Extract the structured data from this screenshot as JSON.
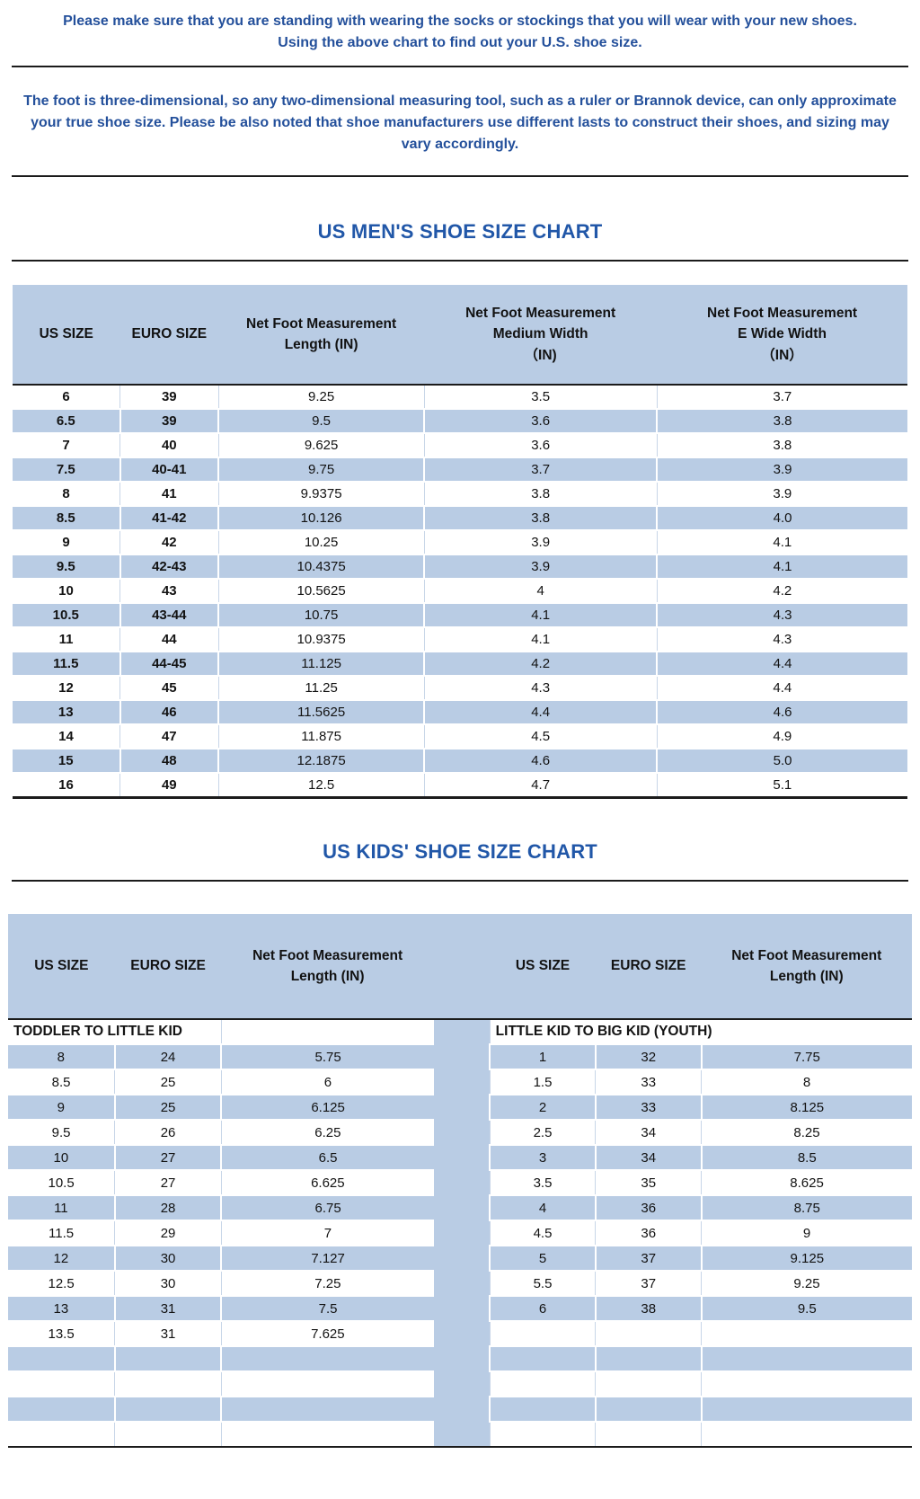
{
  "intro": {
    "p1_line1": "Please make sure that you are standing with wearing the socks or stockings that you will wear with your new shoes.",
    "p1_line2": "Using the above chart to find out your U.S. shoe size.",
    "p2": "The foot is three-dimensional, so any two-dimensional measuring tool, such as a ruler or Brannok device, can only approximate your true shoe size. Please be also noted that shoe manufacturers use different lasts to construct their shoes, and sizing may vary accordingly."
  },
  "colors": {
    "row_blue": "#b9cce4",
    "heading_blue": "#2157a8",
    "paragraph_blue": "#24509b",
    "line_black": "#1b1b1b"
  },
  "mens_chart": {
    "title": "US MEN'S SHOE SIZE CHART",
    "columns": [
      [
        "US SIZE"
      ],
      [
        "EURO SIZE"
      ],
      [
        "Net Foot Measurement",
        "Length (IN)"
      ],
      [
        "Net Foot Measurement",
        "Medium Width",
        "（IN)"
      ],
      [
        "Net Foot Measurement",
        "E Wide Width",
        "（IN）"
      ]
    ],
    "rows": [
      [
        "6",
        "39",
        "9.25",
        "3.5",
        "3.7"
      ],
      [
        "6.5",
        "39",
        "9.5",
        "3.6",
        "3.8"
      ],
      [
        "7",
        "40",
        "9.625",
        "3.6",
        "3.8"
      ],
      [
        "7.5",
        "40-41",
        "9.75",
        "3.7",
        "3.9"
      ],
      [
        "8",
        "41",
        "9.9375",
        "3.8",
        "3.9"
      ],
      [
        "8.5",
        "41-42",
        "10.126",
        "3.8",
        "4.0"
      ],
      [
        "9",
        "42",
        "10.25",
        "3.9",
        "4.1"
      ],
      [
        "9.5",
        "42-43",
        "10.4375",
        "3.9",
        "4.1"
      ],
      [
        "10",
        "43",
        "10.5625",
        "4",
        "4.2"
      ],
      [
        "10.5",
        "43-44",
        "10.75",
        "4.1",
        "4.3"
      ],
      [
        "11",
        "44",
        "10.9375",
        "4.1",
        "4.3"
      ],
      [
        "11.5",
        "44-45",
        "11.125",
        "4.2",
        "4.4"
      ],
      [
        "12",
        "45",
        "11.25",
        "4.3",
        "4.4"
      ],
      [
        "13",
        "46",
        "11.5625",
        "4.4",
        "4.6"
      ],
      [
        "14",
        "47",
        "11.875",
        "4.5",
        "4.9"
      ],
      [
        "15",
        "48",
        "12.1875",
        "4.6",
        "5.0"
      ],
      [
        "16",
        "49",
        "12.5",
        "4.7",
        "5.1"
      ]
    ]
  },
  "kids_chart": {
    "title": "US KIDS' SHOE SIZE CHART",
    "columns": [
      [
        "US SIZE"
      ],
      [
        "EURO SIZE"
      ],
      [
        "Net Foot Measurement",
        "Length (IN)"
      ]
    ],
    "left_section": "TODDLER TO LITTLE KID",
    "right_section": "LITTLE KID TO BIG KID (YOUTH)",
    "left_rows": [
      [
        "8",
        "24",
        "5.75"
      ],
      [
        "8.5",
        "25",
        "6"
      ],
      [
        "9",
        "25",
        "6.125"
      ],
      [
        "9.5",
        "26",
        "6.25"
      ],
      [
        "10",
        "27",
        "6.5"
      ],
      [
        "10.5",
        "27",
        "6.625"
      ],
      [
        "11",
        "28",
        "6.75"
      ],
      [
        "11.5",
        "29",
        "7"
      ],
      [
        "12",
        "30",
        "7.127"
      ],
      [
        "12.5",
        "30",
        "7.25"
      ],
      [
        "13",
        "31",
        "7.5"
      ],
      [
        "13.5",
        "31",
        "7.625"
      ]
    ],
    "right_rows": [
      [
        "1",
        "32",
        "7.75"
      ],
      [
        "1.5",
        "33",
        "8"
      ],
      [
        "2",
        "33",
        "8.125"
      ],
      [
        "2.5",
        "34",
        "8.25"
      ],
      [
        "3",
        "34",
        "8.5"
      ],
      [
        "3.5",
        "35",
        "8.625"
      ],
      [
        "4",
        "36",
        "8.75"
      ],
      [
        "4.5",
        "36",
        "9"
      ],
      [
        "5",
        "37",
        "9.125"
      ],
      [
        "5.5",
        "37",
        "9.25"
      ],
      [
        "6",
        "38",
        "9.5"
      ],
      [
        "",
        "",
        ""
      ]
    ],
    "empty_rows": 4
  }
}
